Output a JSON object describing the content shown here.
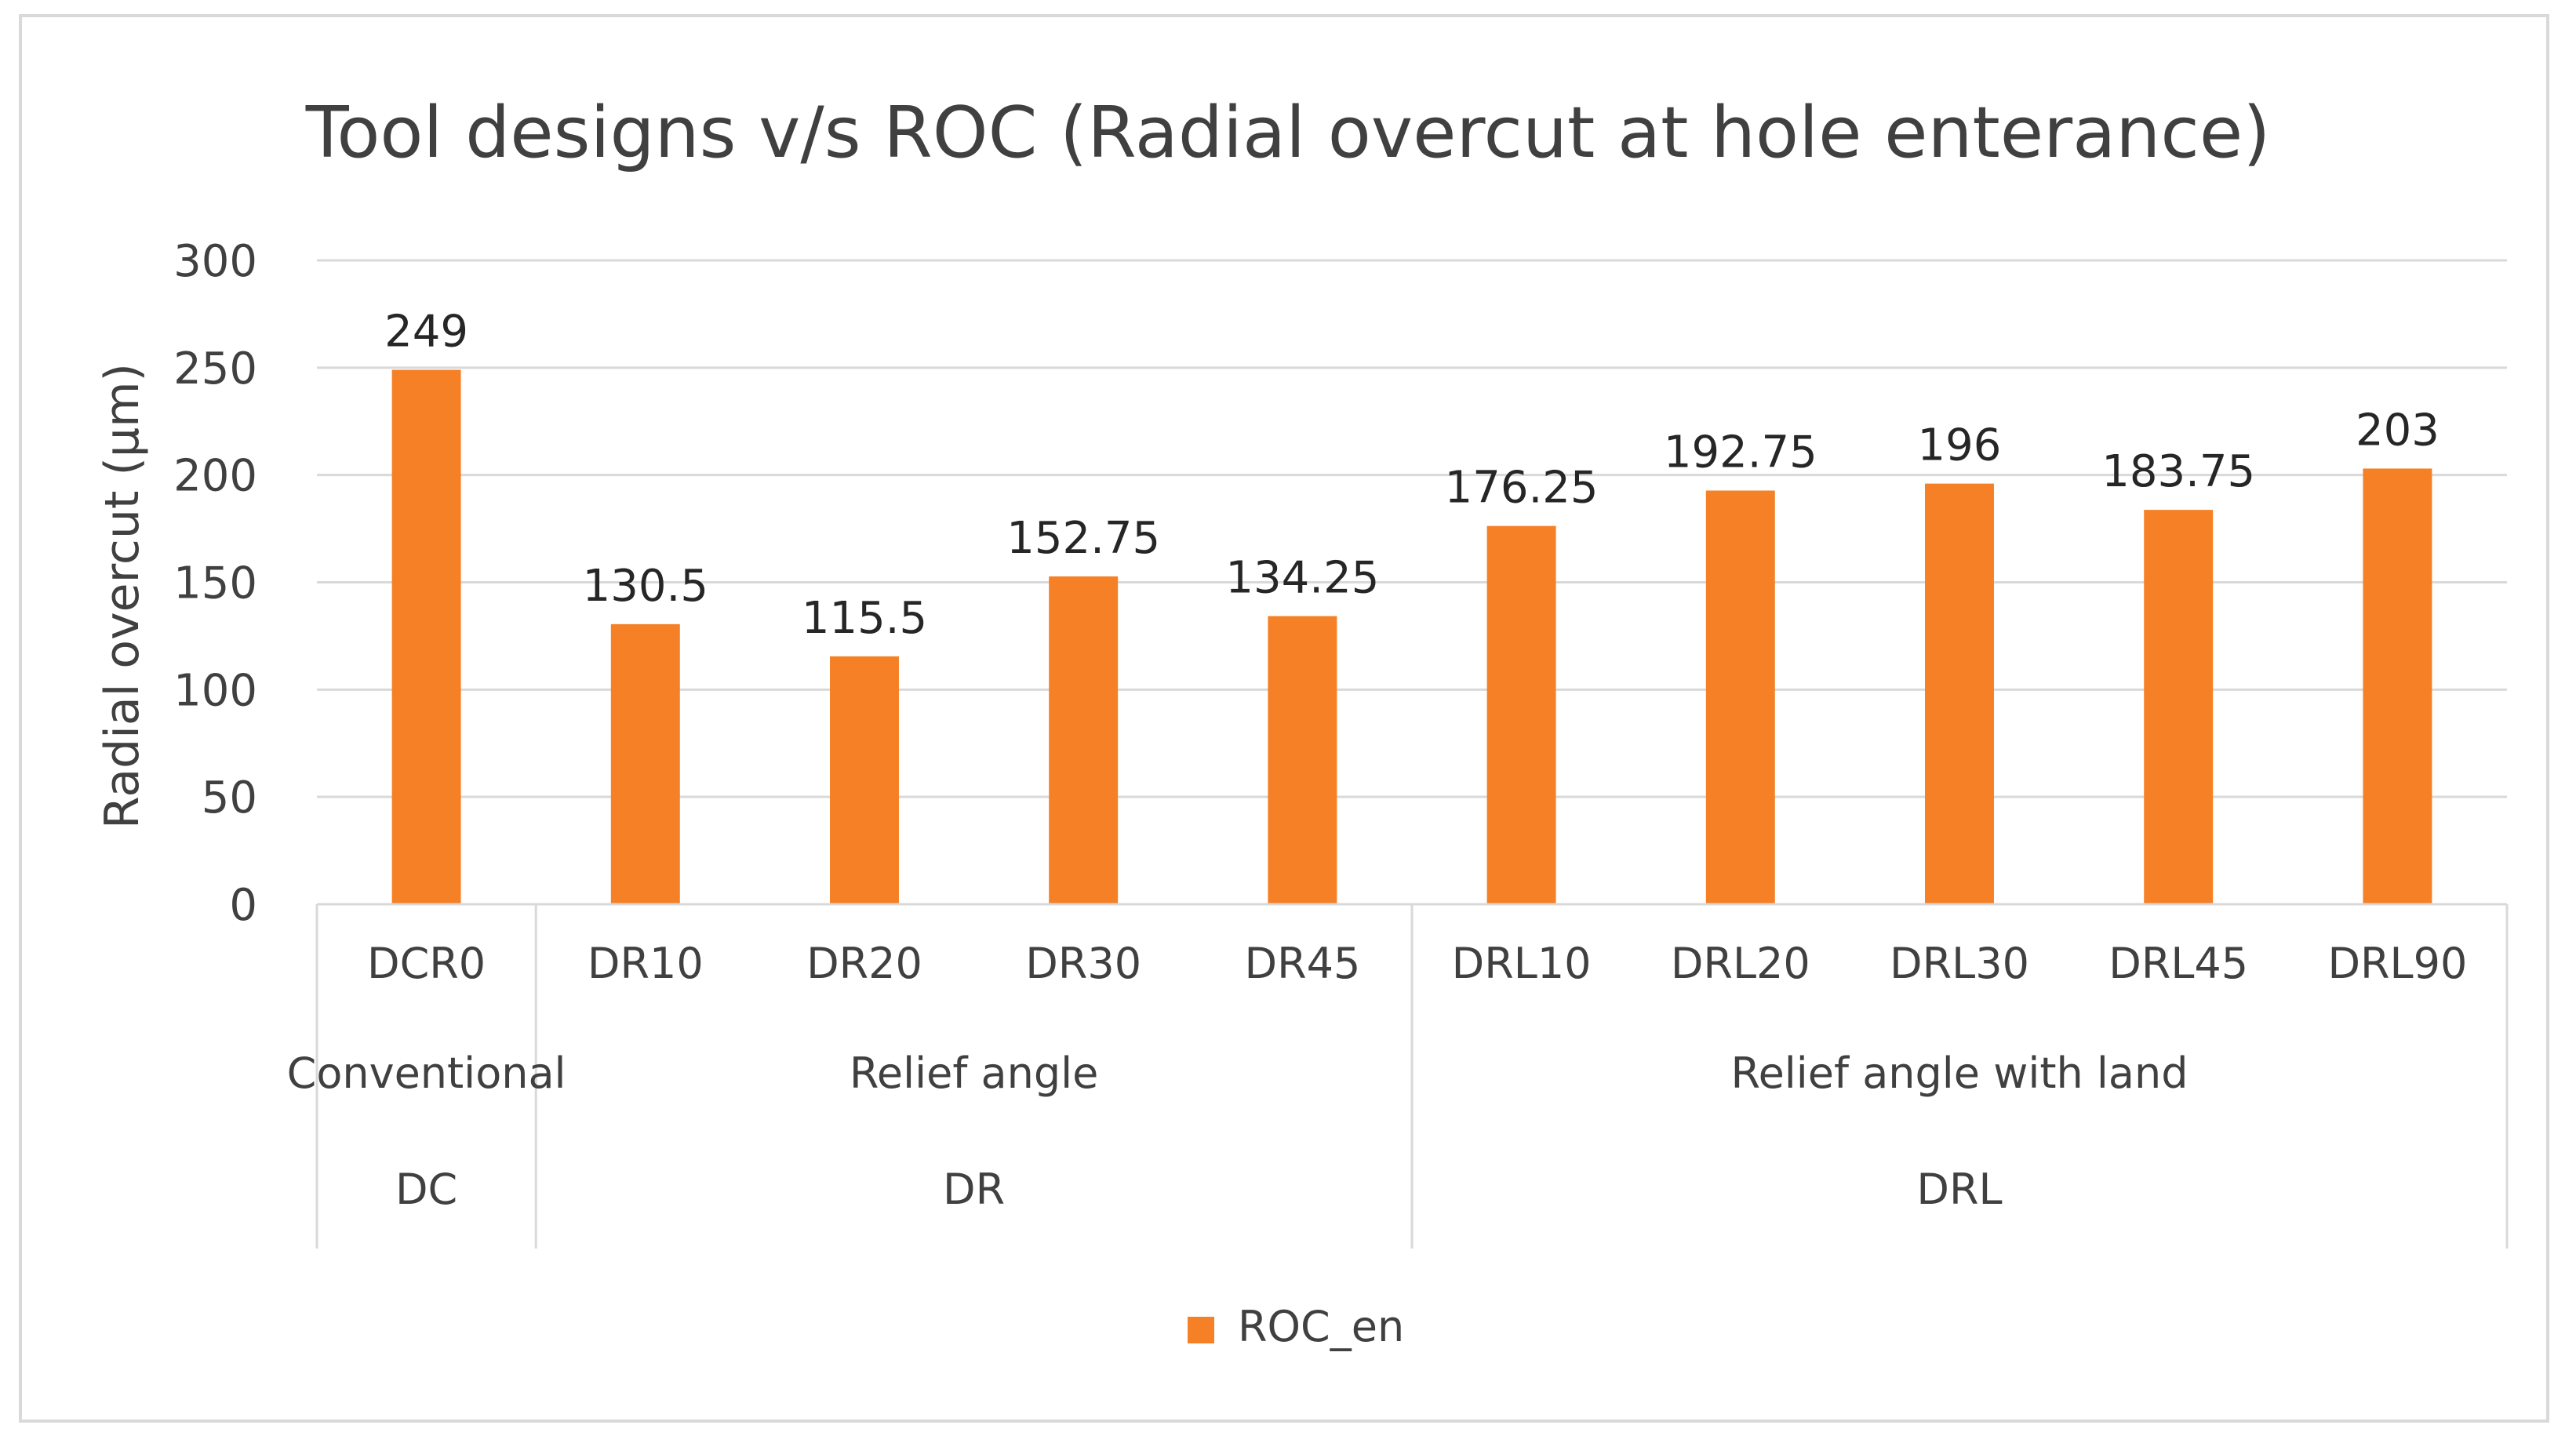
{
  "chart_data": {
    "type": "bar",
    "title": "Tool designs v/s ROC (Radial overcut at hole enterance)",
    "xlabel": "",
    "ylabel": "Radial overcut (µm)",
    "ylim": [
      0,
      300
    ],
    "yticks": [
      "0",
      "50",
      "100",
      "150",
      "200",
      "250",
      "300"
    ],
    "grid": true,
    "legend_position": "bottom",
    "categories": [
      "DCR0",
      "DR10",
      "DR20",
      "DR30",
      "DR45",
      "DRL10",
      "DRL20",
      "DRL30",
      "DRL45",
      "DRL90"
    ],
    "groups": [
      {
        "label": "Conventional",
        "code": "DC",
        "start": 0,
        "count": 1
      },
      {
        "label": "Relief angle",
        "code": "DR",
        "start": 1,
        "count": 4
      },
      {
        "label": "Relief angle with land",
        "code": "DRL",
        "start": 5,
        "count": 5
      }
    ],
    "series": [
      {
        "name": "ROC_en",
        "color": "#f58025",
        "values": [
          249,
          130.5,
          115.5,
          152.75,
          134.25,
          176.25,
          192.75,
          196,
          183.75,
          203
        ],
        "labels": [
          "249",
          "130.5",
          "115.5",
          "152.75",
          "134.25",
          "176.25",
          "192.75",
          "196",
          "183.75",
          "203"
        ]
      }
    ]
  }
}
